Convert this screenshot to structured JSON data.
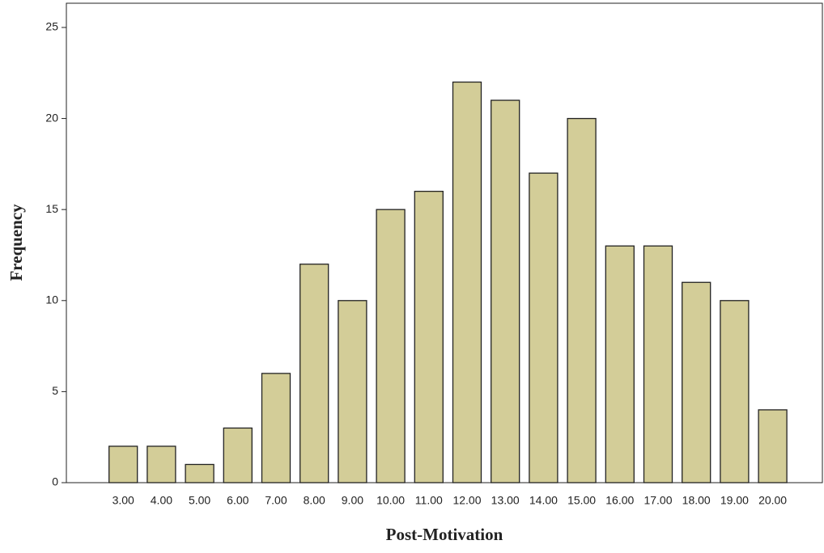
{
  "chart_data": {
    "type": "bar",
    "categories": [
      "3.00",
      "4.00",
      "5.00",
      "6.00",
      "7.00",
      "8.00",
      "9.00",
      "10.00",
      "11.00",
      "12.00",
      "13.00",
      "14.00",
      "15.00",
      "16.00",
      "17.00",
      "18.00",
      "19.00",
      "20.00"
    ],
    "values": [
      2,
      2,
      1,
      3,
      6,
      12,
      10,
      15,
      16,
      22,
      21,
      17,
      20,
      13,
      13,
      11,
      10,
      4
    ],
    "color": "#d3cd98",
    "x_label": "Post-Motivation",
    "y_label": "Frequency",
    "ylim": [
      0,
      26.33
    ],
    "yticks": [
      0,
      5,
      10,
      15,
      20,
      25
    ],
    "grid": false
  }
}
